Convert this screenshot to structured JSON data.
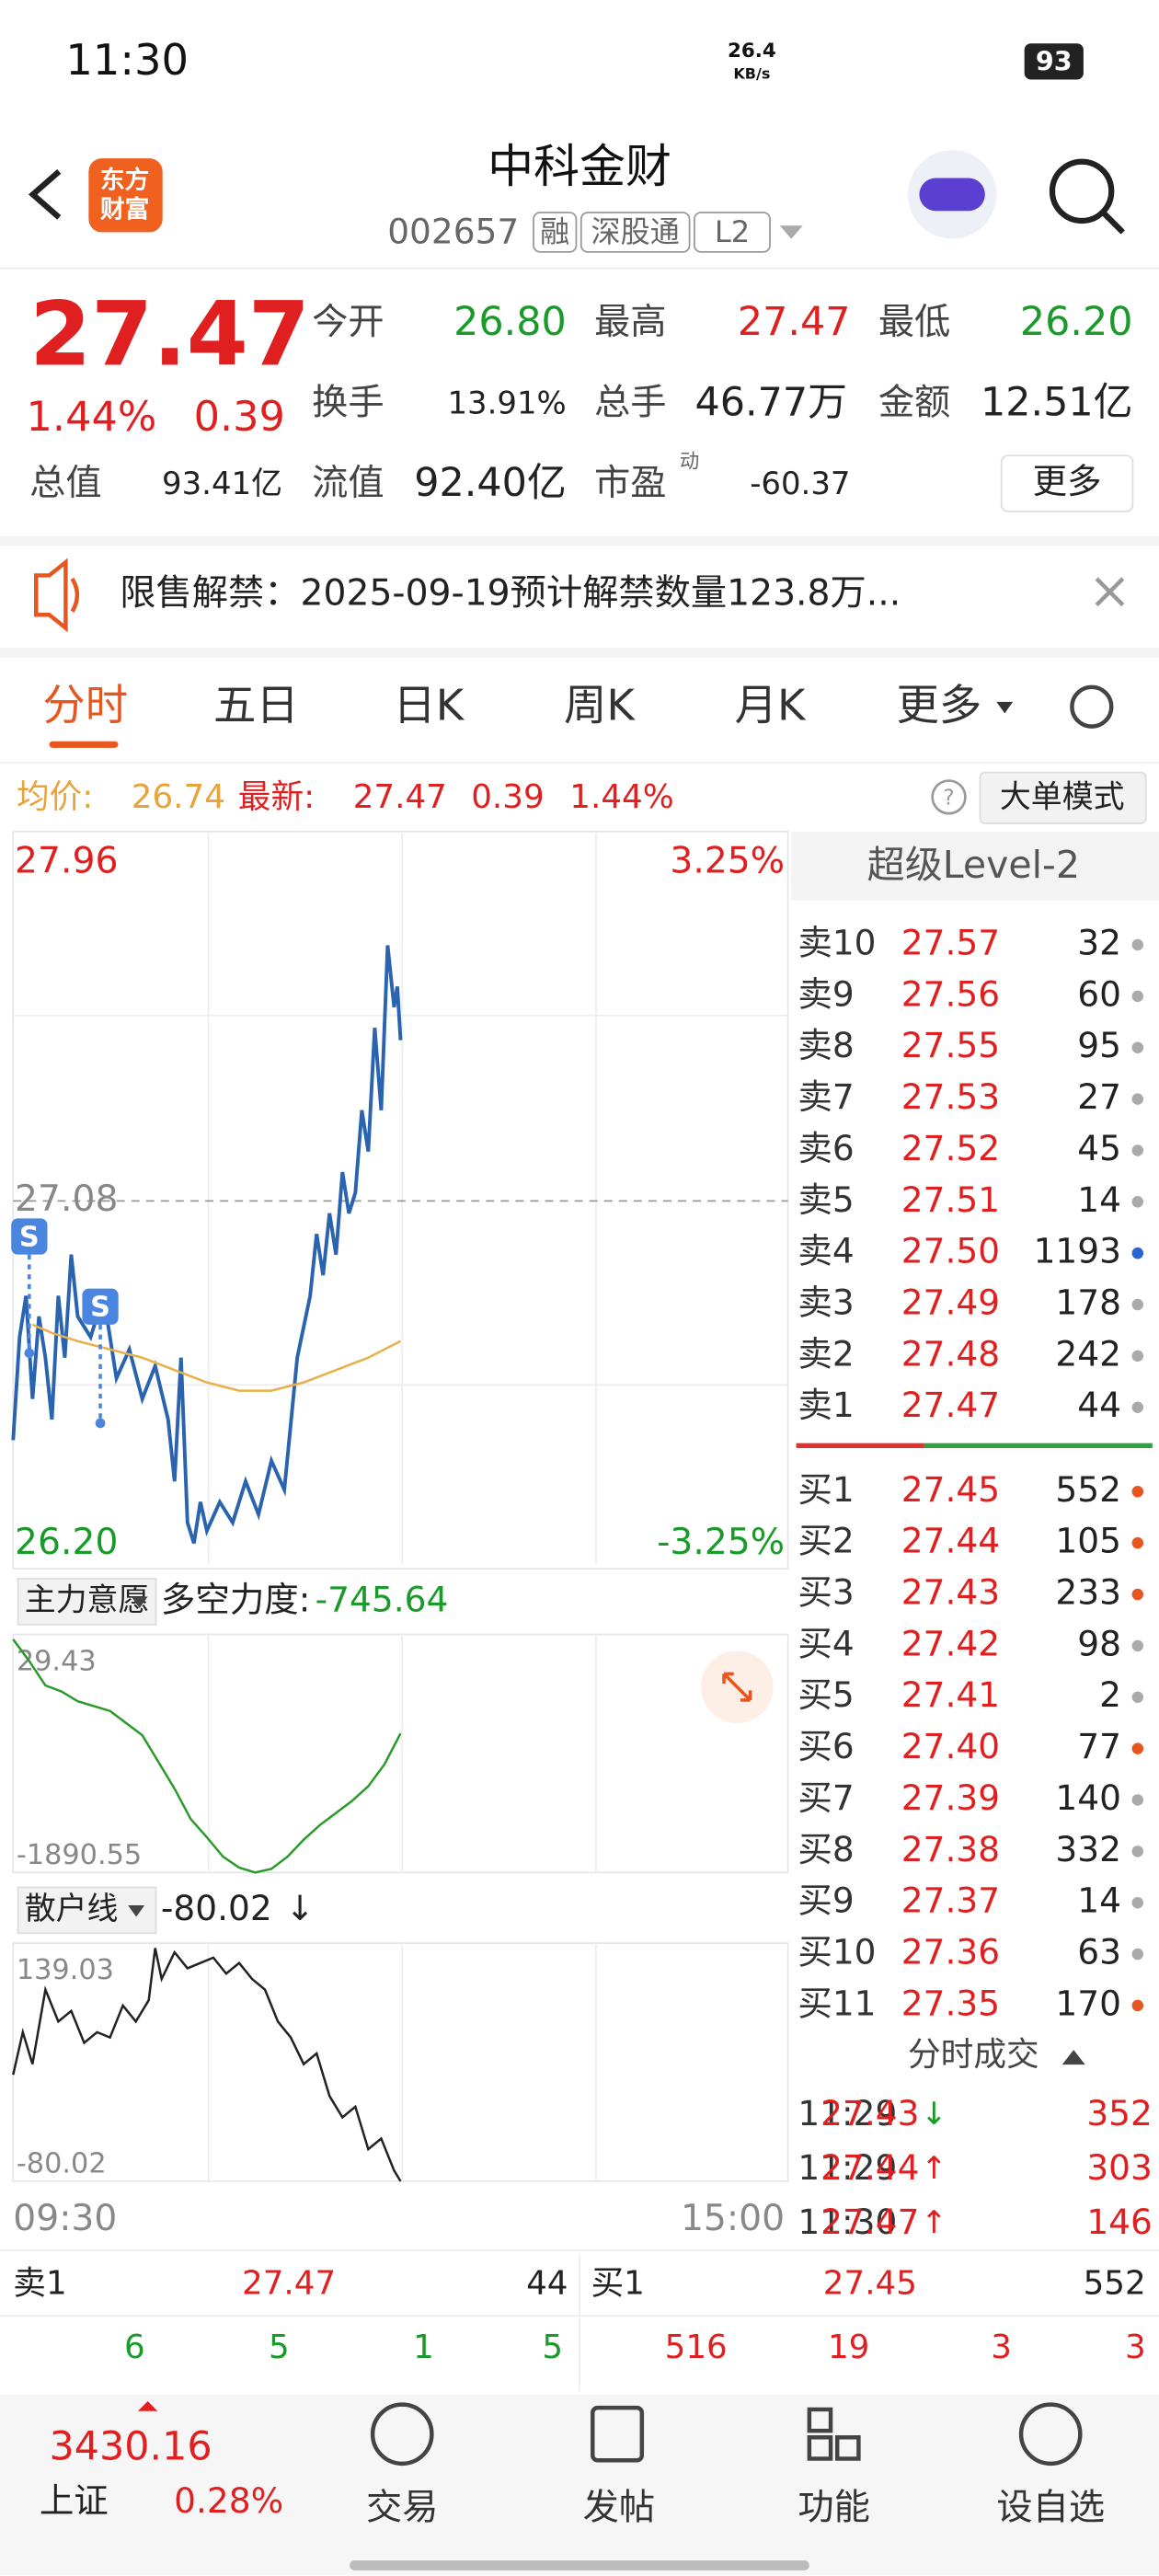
{
  "status_bar": {
    "time": "11:30",
    "speed": "26.4",
    "speed_unit": "KB/s",
    "battery": "93"
  },
  "header": {
    "logo": [
      "东方",
      "财富"
    ],
    "title": "中科金财",
    "code": "002657",
    "tags": [
      "融",
      "深股通",
      "L2"
    ]
  },
  "quote": {
    "price": "27.47",
    "change_pct": "1.44%",
    "change": "0.39",
    "stats": [
      {
        "label": "今开",
        "value": "26.80",
        "color": "#1a9a2a"
      },
      {
        "label": "最高",
        "value": "27.47",
        "color": "#e02020"
      },
      {
        "label": "最低",
        "value": "26.20",
        "color": "#1a9a2a"
      },
      {
        "label": "换手",
        "value": "13.91%",
        "color": "#222"
      },
      {
        "label": "总手",
        "value": "46.77万",
        "color": "#222"
      },
      {
        "label": "金额",
        "value": "12.51亿",
        "color": "#222"
      },
      {
        "label": "总值",
        "value": "93.41亿",
        "color": "#222"
      },
      {
        "label": "流值",
        "value": "92.40亿",
        "color": "#222"
      },
      {
        "label": "市盈",
        "value": "-60.37",
        "color": "#222",
        "sup": "动"
      }
    ],
    "more": "更多"
  },
  "notice": "限售解禁：2025-09-19预计解禁数量123.8万...",
  "tabs": [
    "分时",
    "五日",
    "日K",
    "周K",
    "月K",
    "更多"
  ],
  "summary": {
    "avg_label": "均价:",
    "avg": "26.74",
    "latest_label": "最新:",
    "latest": "27.47",
    "change": "0.39",
    "change_pct": "1.44%",
    "mode": "大单模式"
  },
  "chart_data": [
    {
      "type": "line",
      "xlim": [
        0,
        240
      ],
      "ylim": [
        26.2,
        27.96
      ],
      "top_label": "27.96",
      "top_pct": "3.25%",
      "mid_label": "27.08",
      "bottom_label": "26.20",
      "bottom_pct": "-3.25%",
      "x_labels": [
        "09:30",
        "15:00"
      ],
      "series": [
        {
          "name": "最新",
          "color": "#2a64b0",
          "x": [
            0,
            2,
            4,
            6,
            8,
            10,
            12,
            14,
            16,
            18,
            20,
            24,
            28,
            32,
            36,
            40,
            44,
            48,
            50,
            52,
            54,
            56,
            58,
            60,
            64,
            68,
            72,
            76,
            80,
            84,
            88,
            92,
            94,
            96,
            98,
            100,
            102,
            104,
            106,
            108,
            110,
            112,
            114,
            116,
            118,
            119,
            120
          ],
          "values": [
            26.5,
            26.75,
            26.85,
            26.6,
            26.8,
            26.7,
            26.55,
            26.85,
            26.7,
            26.95,
            26.8,
            26.75,
            26.85,
            26.65,
            26.72,
            26.6,
            26.68,
            26.55,
            26.4,
            26.7,
            26.3,
            26.25,
            26.35,
            26.28,
            26.35,
            26.3,
            26.4,
            26.32,
            26.45,
            26.38,
            26.7,
            26.85,
            27.0,
            26.9,
            27.05,
            26.95,
            27.15,
            27.05,
            27.1,
            27.3,
            27.2,
            27.5,
            27.3,
            27.7,
            27.55,
            27.6,
            27.47
          ]
        },
        {
          "name": "均价",
          "color": "#e8b04a",
          "x": [
            6,
            12,
            20,
            30,
            40,
            50,
            60,
            70,
            80,
            90,
            100,
            110,
            120
          ],
          "values": [
            26.78,
            26.76,
            26.74,
            26.72,
            26.7,
            26.67,
            26.64,
            26.62,
            26.62,
            26.64,
            26.67,
            26.7,
            26.74
          ]
        }
      ],
      "signals": [
        {
          "label": "S",
          "x": 5,
          "value": 26.95
        },
        {
          "label": "S",
          "x": 27,
          "value": 26.78
        }
      ]
    },
    {
      "type": "line",
      "name": "主力意愿",
      "metric_label": "多空力度:",
      "metric": "-745.64",
      "xlim": [
        0,
        240
      ],
      "ylim": [
        -1890.55,
        29.43
      ],
      "top_label": "29.43",
      "bottom_label": "-1890.55",
      "series": [
        {
          "color": "#2a9a2a",
          "x": [
            0,
            5,
            10,
            15,
            20,
            30,
            40,
            50,
            55,
            60,
            65,
            70,
            75,
            80,
            85,
            90,
            95,
            100,
            105,
            110,
            115,
            120
          ],
          "values": [
            29.43,
            -150,
            -350,
            -400,
            -480,
            -560,
            -760,
            -1200,
            -1450,
            -1600,
            -1760,
            -1850,
            -1890.55,
            -1860,
            -1760,
            -1620,
            -1500,
            -1400,
            -1300,
            -1180,
            -1000,
            -745.64
          ]
        }
      ]
    },
    {
      "type": "line",
      "name": "散户线",
      "metric": "-80.02",
      "metric_arrow": "↓",
      "xlim": [
        0,
        240
      ],
      "ylim": [
        -80.02,
        139.03
      ],
      "top_label": "139.03",
      "bottom_label": "-80.02",
      "series": [
        {
          "color": "#222",
          "x": [
            0,
            3,
            6,
            10,
            14,
            18,
            22,
            26,
            30,
            34,
            38,
            42,
            44,
            46,
            50,
            54,
            58,
            62,
            66,
            70,
            74,
            78,
            82,
            86,
            90,
            94,
            98,
            102,
            106,
            110,
            114,
            118,
            120
          ],
          "values": [
            20,
            60,
            30,
            100,
            70,
            80,
            50,
            60,
            55,
            85,
            70,
            90,
            139.03,
            110,
            135,
            120,
            125,
            130,
            115,
            125,
            110,
            100,
            70,
            55,
            30,
            40,
            0,
            -20,
            -10,
            -50,
            -40,
            -70,
            -80.02
          ]
        }
      ]
    }
  ],
  "order_book": {
    "title": "超级Level-2",
    "sell": [
      {
        "label": "卖10",
        "price": "27.57",
        "volume": "32",
        "dot": "#aaa"
      },
      {
        "label": "卖9",
        "price": "27.56",
        "volume": "60",
        "dot": "#aaa"
      },
      {
        "label": "卖8",
        "price": "27.55",
        "volume": "95",
        "dot": "#aaa"
      },
      {
        "label": "卖7",
        "price": "27.53",
        "volume": "27",
        "dot": "#aaa"
      },
      {
        "label": "卖6",
        "price": "27.52",
        "volume": "45",
        "dot": "#aaa"
      },
      {
        "label": "卖5",
        "price": "27.51",
        "volume": "14",
        "dot": "#aaa"
      },
      {
        "label": "卖4",
        "price": "27.50",
        "volume": "1193",
        "dot": "#2a64d0"
      },
      {
        "label": "卖3",
        "price": "27.49",
        "volume": "178",
        "dot": "#aaa"
      },
      {
        "label": "卖2",
        "price": "27.48",
        "volume": "242",
        "dot": "#aaa"
      },
      {
        "label": "卖1",
        "price": "27.47",
        "volume": "44",
        "dot": "#aaa"
      }
    ],
    "buy": [
      {
        "label": "买1",
        "price": "27.45",
        "volume": "552",
        "dot": "#e8561f"
      },
      {
        "label": "买2",
        "price": "27.44",
        "volume": "105",
        "dot": "#e8561f"
      },
      {
        "label": "买3",
        "price": "27.43",
        "volume": "233",
        "dot": "#e8561f"
      },
      {
        "label": "买4",
        "price": "27.42",
        "volume": "98",
        "dot": "#aaa"
      },
      {
        "label": "买5",
        "price": "27.41",
        "volume": "2",
        "dot": "#aaa"
      },
      {
        "label": "买6",
        "price": "27.40",
        "volume": "77",
        "dot": "#e8561f"
      },
      {
        "label": "买7",
        "price": "27.39",
        "volume": "140",
        "dot": "#aaa"
      },
      {
        "label": "买8",
        "price": "27.38",
        "volume": "332",
        "dot": "#aaa"
      },
      {
        "label": "买9",
        "price": "27.37",
        "volume": "14",
        "dot": "#aaa"
      },
      {
        "label": "买10",
        "price": "27.36",
        "volume": "63",
        "dot": "#aaa"
      },
      {
        "label": "买11",
        "price": "27.35",
        "volume": "170",
        "dot": "#e8561f"
      }
    ]
  },
  "trades": {
    "title": "分时成交",
    "rows": [
      {
        "time": "11:29",
        "price": "27.43",
        "arrow": "↓",
        "arrow_color": "#1a9a2a",
        "volume": "352"
      },
      {
        "time": "11:29",
        "price": "27.44",
        "arrow": "↑",
        "arrow_color": "#e02020",
        "volume": "303"
      },
      {
        "time": "11:30",
        "price": "27.47",
        "arrow": "↑",
        "arrow_color": "#e02020",
        "volume": "146"
      }
    ]
  },
  "bottom_quote": {
    "sell_label": "卖1",
    "sell_price": "27.47",
    "sell_volume": "44",
    "buy_label": "买1",
    "buy_price": "27.45",
    "buy_volume": "552",
    "sell_counts": [
      "6",
      "5",
      "1",
      "5"
    ],
    "buy_counts": [
      "516",
      "19",
      "3",
      "3"
    ]
  },
  "nav": {
    "index_value": "3430.16",
    "index_name": "上证",
    "index_pct": "0.28%",
    "items": [
      "交易",
      "发帖",
      "功能",
      "设自选"
    ]
  }
}
